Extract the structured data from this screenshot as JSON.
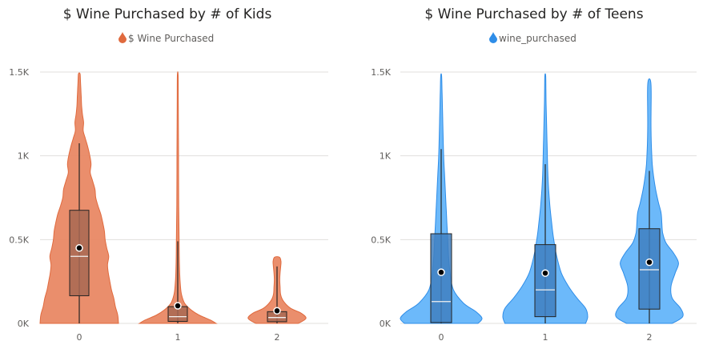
{
  "chart_data": [
    {
      "type": "violin",
      "title": "$ Wine Purchased by # of Kids",
      "legend": "$ Wine Purchased",
      "legend_placement": "top-center",
      "color": "#E8825C",
      "stroke": "#E06A3E",
      "box_color": "#A86852",
      "ylim": [
        0,
        1500
      ],
      "y_ticks": [
        0,
        500,
        1000,
        1500
      ],
      "y_tick_labels": [
        "0K",
        "0.5K",
        "1K",
        "1.5K"
      ],
      "grid": true,
      "categories": [
        "0",
        "1",
        "2"
      ],
      "groups": [
        {
          "category": "0",
          "box": {
            "whisker_low": 0,
            "q1": 165,
            "median": 400,
            "q3": 675,
            "whisker_high": 1075,
            "mean": 450
          },
          "density": [
            [
              0,
              1.0
            ],
            [
              50,
              0.98
            ],
            [
              100,
              0.92
            ],
            [
              150,
              0.88
            ],
            [
              200,
              0.82
            ],
            [
              250,
              0.78
            ],
            [
              300,
              0.74
            ],
            [
              350,
              0.72
            ],
            [
              400,
              0.75
            ],
            [
              450,
              0.7
            ],
            [
              500,
              0.66
            ],
            [
              550,
              0.64
            ],
            [
              600,
              0.6
            ],
            [
              650,
              0.55
            ],
            [
              700,
              0.48
            ],
            [
              750,
              0.42
            ],
            [
              800,
              0.4
            ],
            [
              850,
              0.34
            ],
            [
              900,
              0.28
            ],
            [
              950,
              0.3
            ],
            [
              1000,
              0.27
            ],
            [
              1050,
              0.22
            ],
            [
              1100,
              0.16
            ],
            [
              1150,
              0.1
            ],
            [
              1200,
              0.11
            ],
            [
              1250,
              0.08
            ],
            [
              1300,
              0.06
            ],
            [
              1350,
              0.05
            ],
            [
              1400,
              0.04
            ],
            [
              1450,
              0.03
            ],
            [
              1490,
              0.02
            ]
          ]
        },
        {
          "category": "1",
          "box": {
            "whisker_low": 0,
            "q1": 12,
            "median": 40,
            "q3": 100,
            "whisker_high": 490,
            "mean": 105
          },
          "density": [
            [
              0,
              1.0
            ],
            [
              20,
              0.85
            ],
            [
              50,
              0.55
            ],
            [
              80,
              0.35
            ],
            [
              120,
              0.18
            ],
            [
              170,
              0.1
            ],
            [
              220,
              0.07
            ],
            [
              300,
              0.05
            ],
            [
              400,
              0.04
            ],
            [
              500,
              0.035
            ],
            [
              700,
              0.025
            ],
            [
              1000,
              0.02
            ],
            [
              1300,
              0.015
            ],
            [
              1480,
              0.01
            ]
          ]
        },
        {
          "category": "2",
          "box": {
            "whisker_low": 0,
            "q1": 10,
            "median": 35,
            "q3": 70,
            "whisker_high": 340,
            "mean": 75
          },
          "density": [
            [
              0,
              0.7
            ],
            [
              30,
              0.95
            ],
            [
              60,
              0.8
            ],
            [
              90,
              0.45
            ],
            [
              130,
              0.22
            ],
            [
              170,
              0.12
            ],
            [
              220,
              0.1
            ],
            [
              260,
              0.09
            ],
            [
              300,
              0.1
            ],
            [
              340,
              0.12
            ],
            [
              370,
              0.13
            ],
            [
              395,
              0.08
            ]
          ]
        }
      ]
    },
    {
      "type": "violin",
      "title": "$ Wine Purchased by # of Teens",
      "legend": "wine_purchased",
      "legend_placement": "top-center",
      "color": "#5CB1FA",
      "stroke": "#2E8DE8",
      "box_color": "#3F7FBF",
      "ylim": [
        0,
        1500
      ],
      "y_ticks": [
        0,
        500,
        1000,
        1500
      ],
      "y_tick_labels": [
        "0K",
        "0.5K",
        "1K",
        "1.5K"
      ],
      "grid": true,
      "categories": [
        "0",
        "1",
        "2"
      ],
      "groups": [
        {
          "category": "0",
          "box": {
            "whisker_low": 0,
            "q1": 5,
            "median": 130,
            "q3": 535,
            "whisker_high": 1040,
            "mean": 305
          },
          "density": [
            [
              0,
              0.9
            ],
            [
              30,
              1.0
            ],
            [
              70,
              0.85
            ],
            [
              120,
              0.55
            ],
            [
              200,
              0.3
            ],
            [
              300,
              0.22
            ],
            [
              400,
              0.18
            ],
            [
              500,
              0.16
            ],
            [
              600,
              0.14
            ],
            [
              700,
              0.12
            ],
            [
              800,
              0.1
            ],
            [
              900,
              0.08
            ],
            [
              1000,
              0.06
            ],
            [
              1100,
              0.05
            ],
            [
              1200,
              0.04
            ],
            [
              1300,
              0.03
            ],
            [
              1400,
              0.02
            ],
            [
              1480,
              0.01
            ]
          ]
        },
        {
          "category": "1",
          "box": {
            "whisker_low": 0,
            "q1": 40,
            "median": 200,
            "q3": 470,
            "whisker_high": 950,
            "mean": 300
          },
          "density": [
            [
              0,
              0.95
            ],
            [
              40,
              1.0
            ],
            [
              90,
              0.95
            ],
            [
              150,
              0.75
            ],
            [
              220,
              0.55
            ],
            [
              300,
              0.38
            ],
            [
              400,
              0.27
            ],
            [
              500,
              0.2
            ],
            [
              600,
              0.15
            ],
            [
              700,
              0.11
            ],
            [
              800,
              0.08
            ],
            [
              900,
              0.06
            ],
            [
              1000,
              0.05
            ],
            [
              1100,
              0.04
            ],
            [
              1200,
              0.03
            ],
            [
              1300,
              0.02
            ],
            [
              1400,
              0.015
            ],
            [
              1480,
              0.01
            ]
          ]
        },
        {
          "category": "2",
          "box": {
            "whisker_low": 0,
            "q1": 85,
            "median": 320,
            "q3": 565,
            "whisker_high": 910,
            "mean": 365
          },
          "density": [
            [
              0,
              0.55
            ],
            [
              40,
              0.8
            ],
            [
              90,
              0.75
            ],
            [
              150,
              0.55
            ],
            [
              220,
              0.52
            ],
            [
              300,
              0.62
            ],
            [
              360,
              0.7
            ],
            [
              420,
              0.58
            ],
            [
              480,
              0.4
            ],
            [
              540,
              0.32
            ],
            [
              600,
              0.3
            ],
            [
              660,
              0.28
            ],
            [
              720,
              0.22
            ],
            [
              800,
              0.15
            ],
            [
              880,
              0.1
            ],
            [
              950,
              0.07
            ],
            [
              1050,
              0.05
            ],
            [
              1150,
              0.04
            ],
            [
              1250,
              0.04
            ],
            [
              1350,
              0.045
            ],
            [
              1420,
              0.04
            ],
            [
              1455,
              0.02
            ]
          ]
        }
      ]
    }
  ]
}
